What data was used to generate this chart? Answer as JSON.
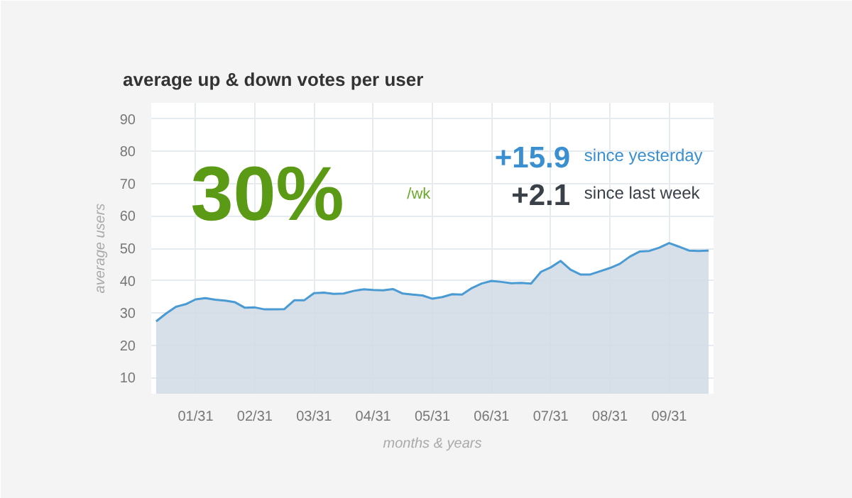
{
  "chart_data": {
    "type": "area",
    "title": "average up & down votes per user",
    "xlabel": "months & years",
    "ylabel": "average users",
    "categories": [
      null,
      null,
      null,
      null,
      "01/31",
      null,
      null,
      null,
      null,
      null,
      "02/31",
      null,
      null,
      null,
      null,
      null,
      "03/31",
      null,
      null,
      null,
      null,
      null,
      "04/31",
      null,
      null,
      null,
      null,
      null,
      "05/31",
      null,
      null,
      null,
      null,
      null,
      "06/31",
      null,
      null,
      null,
      null,
      null,
      "07/31",
      null,
      null,
      null,
      null,
      null,
      "08/31",
      null,
      null,
      null,
      null,
      null,
      "09/31",
      null,
      null,
      null,
      null
    ],
    "series": [
      {
        "color": "#4a9ad4",
        "values": [
          27.4,
          29.8,
          31.9,
          32.7,
          34.2,
          34.6,
          34.1,
          33.8,
          33.3,
          31.6,
          31.7,
          31.1,
          31.1,
          31.2,
          33.9,
          33.9,
          36.1,
          36.3,
          35.9,
          36.0,
          36.8,
          37.3,
          37.1,
          37.0,
          37.4,
          36.0,
          35.7,
          35.4,
          34.4,
          34.9,
          35.8,
          35.7,
          37.7,
          39.1,
          39.9,
          39.6,
          39.2,
          39.3,
          39.1,
          42.7,
          44.1,
          46.1,
          43.4,
          41.9,
          41.9,
          42.9,
          43.9,
          45.2,
          47.4,
          49.0,
          49.2,
          50.2,
          51.6,
          50.5,
          49.3,
          49.2,
          49.3
        ]
      }
    ],
    "ylim": [
      5,
      95
    ],
    "yticks": [
      10,
      20,
      30,
      40,
      50,
      60,
      70,
      80,
      90
    ],
    "grid": true,
    "annotations": [
      "30%",
      "/wk",
      "+15.9",
      "since yesterday",
      "+2.1",
      "since last week"
    ]
  }
}
